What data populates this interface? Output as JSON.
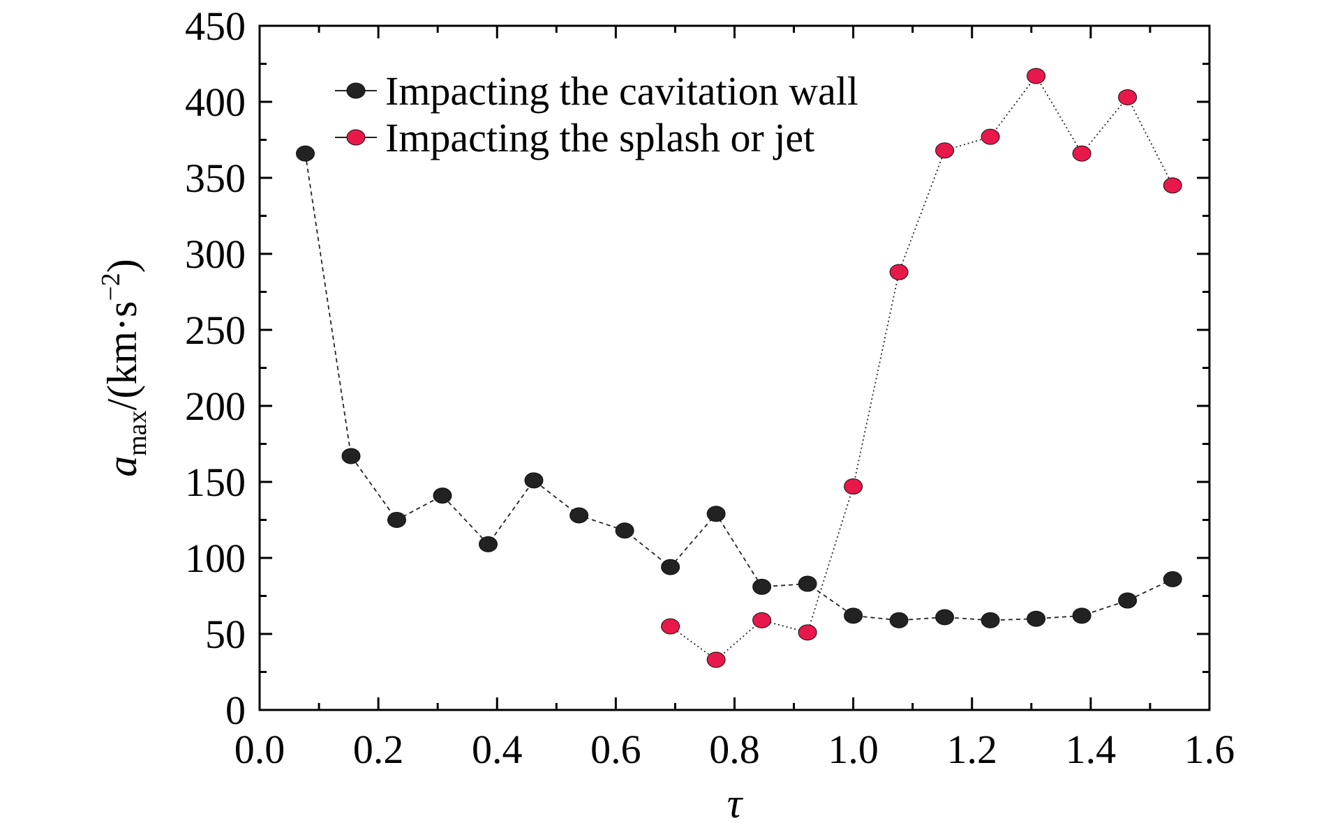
{
  "chart_data": {
    "type": "scatter",
    "xlabel": "τ",
    "ylabel": {
      "base": "a",
      "subscript": "max",
      "unit_prefix": "/(km·s",
      "unit_exponent": "−2",
      "unit_suffix": ")"
    },
    "xlim": [
      0.0,
      1.6
    ],
    "ylim": [
      0,
      450
    ],
    "x_ticks": [
      "0.0",
      "0.2",
      "0.4",
      "0.6",
      "0.8",
      "1.0",
      "1.2",
      "1.4",
      "1.6"
    ],
    "y_ticks": [
      "0",
      "50",
      "100",
      "150",
      "200",
      "250",
      "300",
      "350",
      "400",
      "450"
    ],
    "grid": false,
    "legend_position": "top-center",
    "series": [
      {
        "name": "Impacting the cavitation wall",
        "color": "#222222",
        "line_style": "dashed",
        "x": [
          0.077,
          0.154,
          0.231,
          0.308,
          0.385,
          0.462,
          0.538,
          0.615,
          0.692,
          0.769,
          0.846,
          0.923,
          1.0,
          1.077,
          1.154,
          1.231,
          1.308,
          1.385,
          1.462,
          1.538
        ],
        "y": [
          366,
          167,
          125,
          141,
          109,
          151,
          128,
          118,
          94,
          129,
          81,
          83,
          62,
          59,
          61,
          59,
          60,
          62,
          72,
          86
        ]
      },
      {
        "name": "Impacting the splash or jet",
        "color": "#E8184A",
        "line_style": "dotted",
        "x": [
          0.692,
          0.769,
          0.846,
          0.923,
          1.0,
          1.077,
          1.154,
          1.231,
          1.308,
          1.385,
          1.462,
          1.538
        ],
        "y": [
          55,
          33,
          59,
          51,
          147,
          288,
          368,
          377,
          417,
          366,
          403,
          345
        ]
      }
    ]
  }
}
